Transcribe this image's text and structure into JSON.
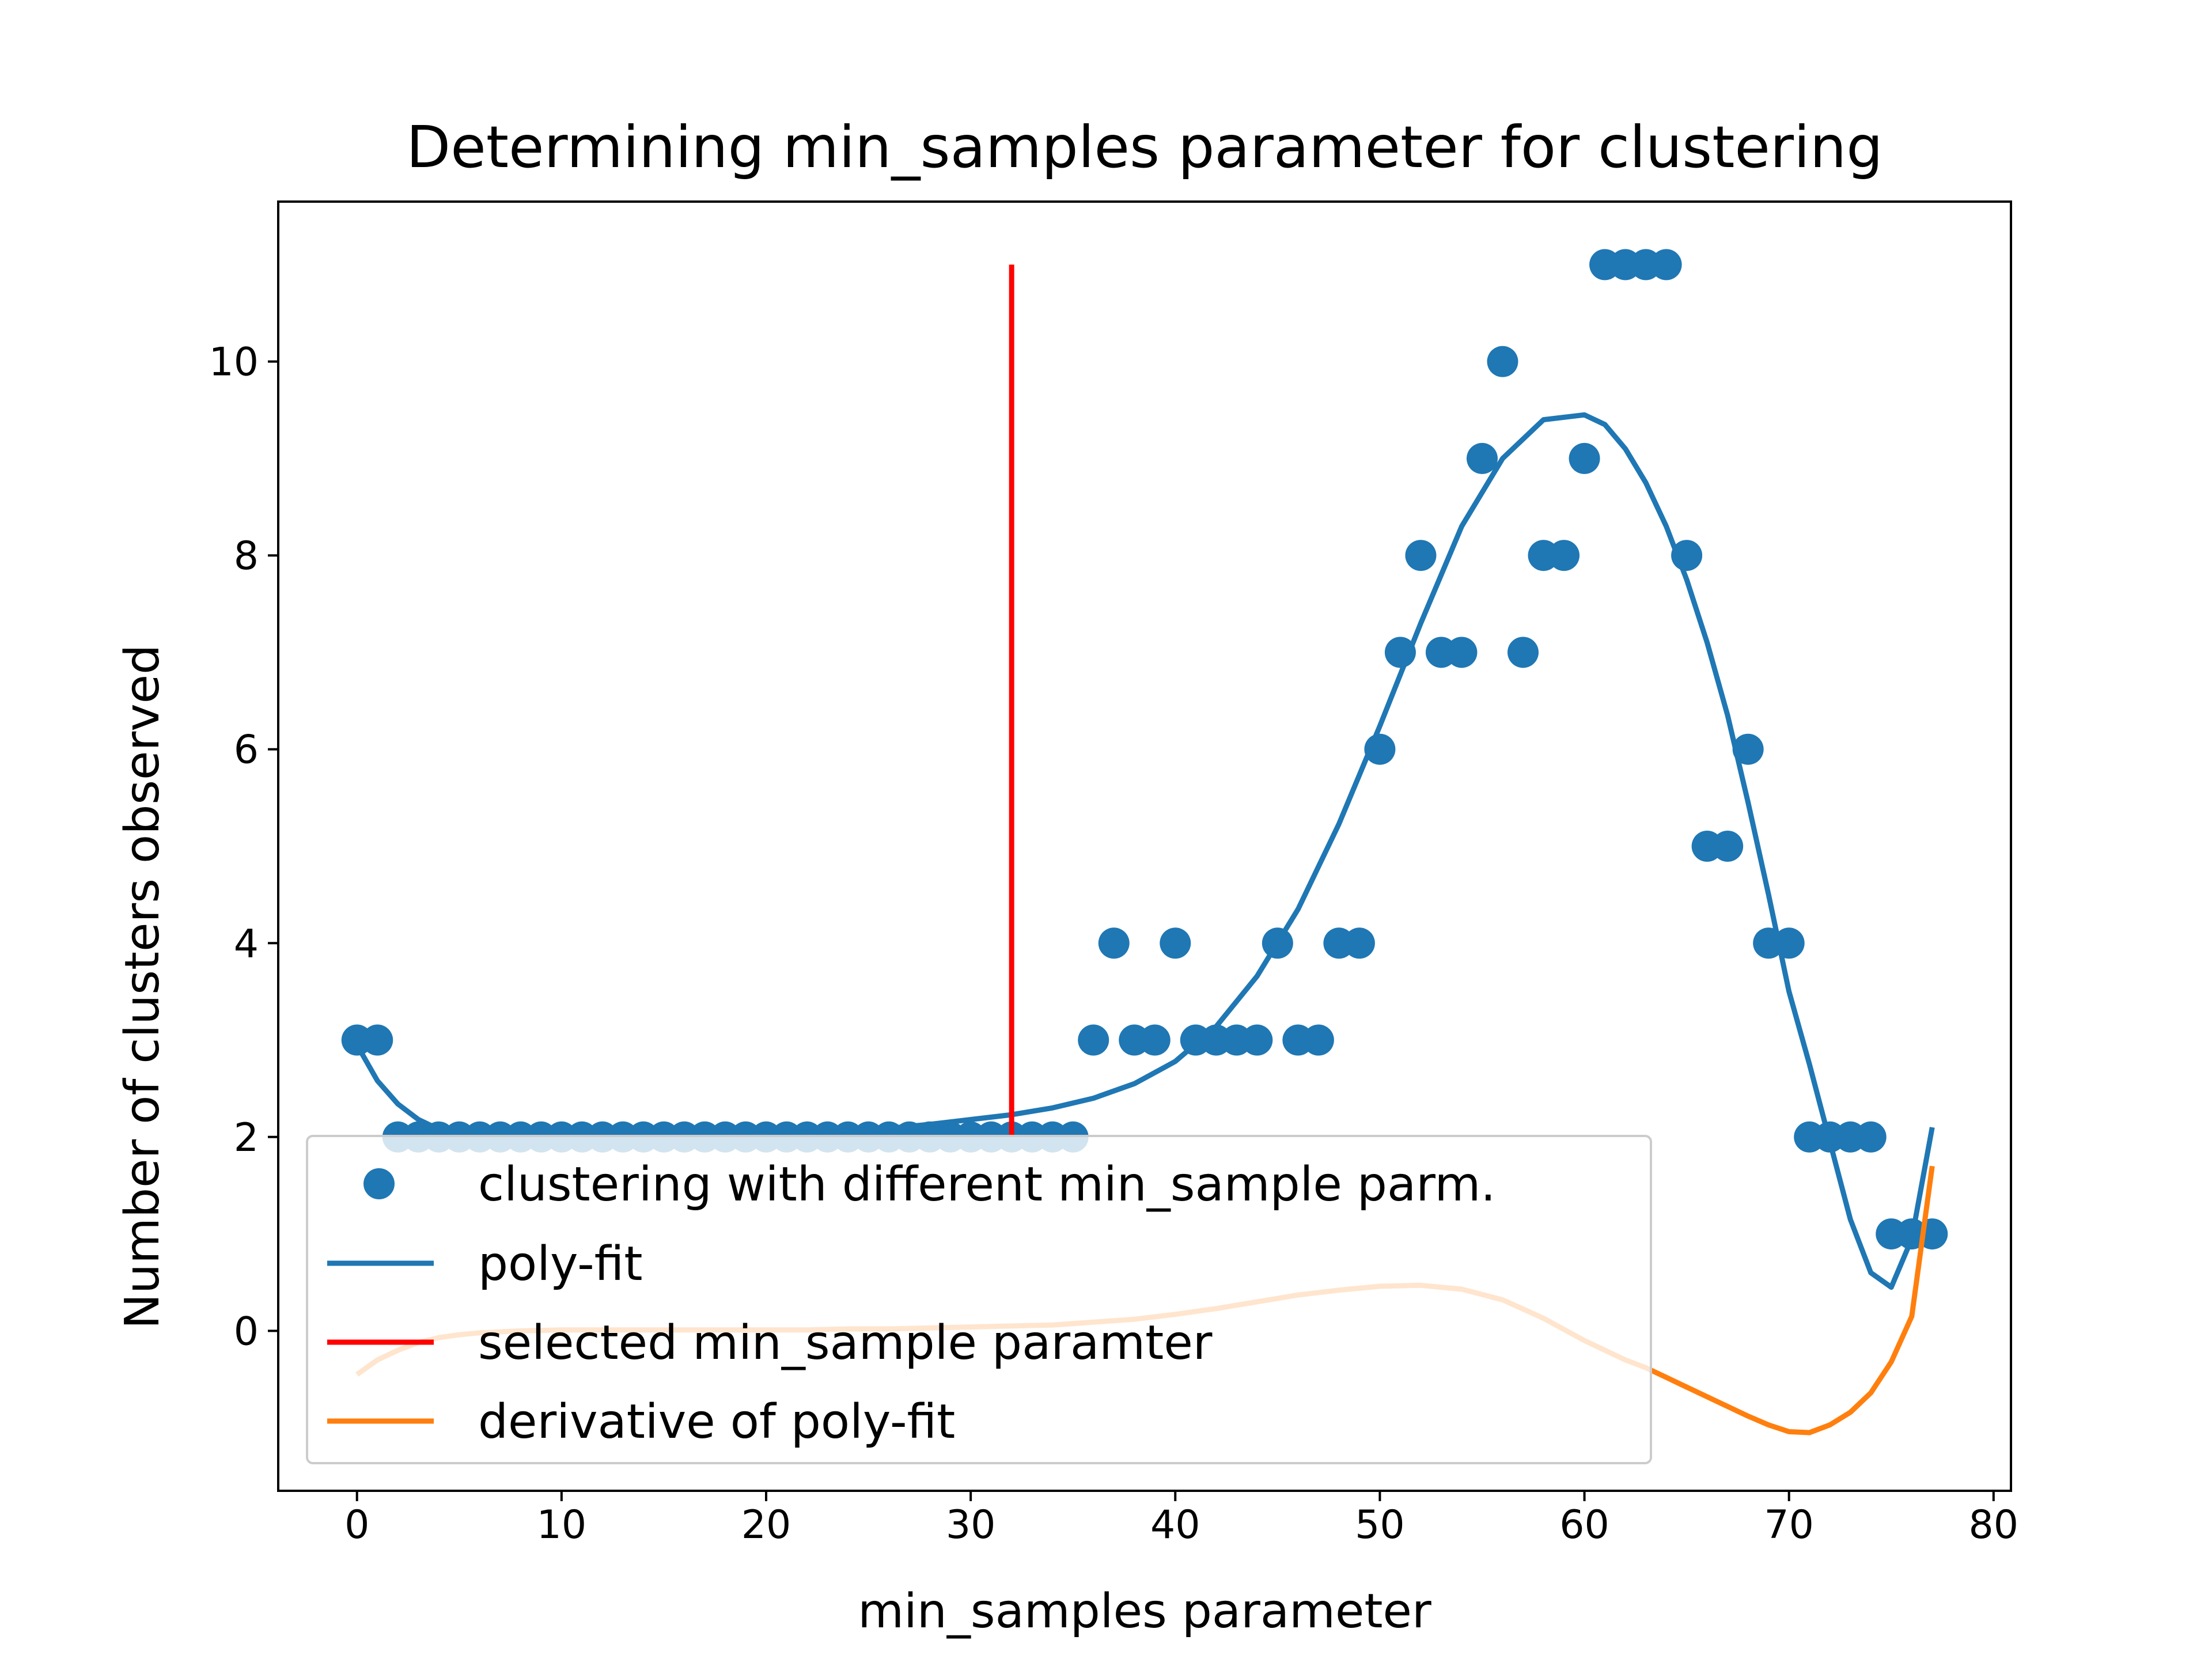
{
  "chart_data": {
    "type": "scatter",
    "title": "Determining min_samples parameter for clustering",
    "xlabel": "min_samples parameter",
    "ylabel": "Number of clusters observed",
    "xlim": [
      -3.85,
      80.85
    ],
    "ylim": [
      -1.65,
      11.65
    ],
    "xticks": [
      0,
      10,
      20,
      30,
      40,
      50,
      60,
      70,
      80
    ],
    "yticks": [
      0,
      2,
      4,
      6,
      8,
      10
    ],
    "grid": false,
    "legend_position": "lower-left",
    "series": [
      {
        "name": "clustering with different min_sample parm.",
        "kind": "scatter",
        "color": "#1f77b4",
        "x": [
          0,
          1,
          2,
          3,
          4,
          5,
          6,
          7,
          8,
          9,
          10,
          11,
          12,
          13,
          14,
          15,
          16,
          17,
          18,
          19,
          20,
          21,
          22,
          23,
          24,
          25,
          26,
          27,
          28,
          29,
          30,
          31,
          32,
          33,
          34,
          35,
          36,
          37,
          38,
          39,
          40,
          41,
          42,
          43,
          44,
          45,
          46,
          47,
          48,
          49,
          50,
          51,
          52,
          53,
          54,
          55,
          56,
          57,
          58,
          59,
          60,
          61,
          62,
          63,
          64,
          65,
          66,
          67,
          68,
          69,
          70,
          71,
          72,
          73,
          74,
          75,
          76,
          77
        ],
        "y": [
          3,
          3,
          2,
          2,
          2,
          2,
          2,
          2,
          2,
          2,
          2,
          2,
          2,
          2,
          2,
          2,
          2,
          2,
          2,
          2,
          2,
          2,
          2,
          2,
          2,
          2,
          2,
          2,
          2,
          2,
          2,
          2,
          2,
          2,
          2,
          2,
          3,
          4,
          3,
          3,
          4,
          3,
          3,
          3,
          3,
          4,
          3,
          3,
          4,
          4,
          6,
          7,
          8,
          7,
          7,
          9,
          10,
          7,
          8,
          8,
          9,
          11,
          11,
          11,
          11,
          8,
          5,
          5,
          6,
          4,
          4,
          2,
          2,
          2,
          2,
          1,
          1,
          1
        ]
      },
      {
        "name": "poly-fit",
        "kind": "line",
        "color": "#1f77b4",
        "x": [
          0,
          1,
          2,
          3,
          4,
          5,
          6,
          8,
          10,
          12,
          14,
          16,
          18,
          20,
          22,
          24,
          26,
          28,
          30,
          32,
          34,
          36,
          38,
          40,
          42,
          44,
          46,
          48,
          50,
          52,
          54,
          56,
          58,
          60,
          61,
          62,
          63,
          64,
          65,
          66,
          67,
          68,
          69,
          70,
          71,
          72,
          73,
          74,
          75,
          76,
          77
        ],
        "y": [
          2.95,
          2.58,
          2.34,
          2.18,
          2.08,
          2.03,
          2.0,
          1.98,
          1.98,
          1.99,
          2.0,
          2.01,
          2.02,
          2.03,
          2.04,
          2.06,
          2.09,
          2.13,
          2.18,
          2.23,
          2.3,
          2.4,
          2.55,
          2.78,
          3.14,
          3.66,
          4.35,
          5.23,
          6.24,
          7.3,
          8.3,
          9.0,
          9.4,
          9.45,
          9.35,
          9.1,
          8.75,
          8.3,
          7.75,
          7.1,
          6.35,
          5.45,
          4.5,
          3.5,
          2.75,
          1.95,
          1.15,
          0.6,
          0.45,
          0.95,
          2.1
        ]
      },
      {
        "name": "selected min_sample paramter",
        "kind": "vline",
        "color": "#ff0000",
        "x": 32,
        "ymin": 2,
        "ymax": 11
      },
      {
        "name": "derivative of poly-fit",
        "kind": "line",
        "color": "#ff7f0e",
        "x": [
          0,
          1,
          2,
          3,
          4,
          5,
          6,
          8,
          10,
          12,
          14,
          16,
          18,
          20,
          22,
          24,
          26,
          28,
          30,
          32,
          34,
          36,
          38,
          40,
          42,
          44,
          46,
          48,
          50,
          52,
          54,
          56,
          58,
          60,
          61,
          62,
          63,
          64,
          65,
          66,
          67,
          68,
          69,
          70,
          71,
          72,
          73,
          74,
          75,
          76,
          77
        ],
        "y": [
          -0.45,
          -0.3,
          -0.2,
          -0.12,
          -0.07,
          -0.04,
          -0.02,
          0.0,
          0.01,
          0.01,
          0.01,
          0.01,
          0.01,
          0.01,
          0.01,
          0.02,
          0.02,
          0.03,
          0.04,
          0.05,
          0.06,
          0.09,
          0.12,
          0.17,
          0.23,
          0.3,
          0.37,
          0.42,
          0.46,
          0.47,
          0.43,
          0.32,
          0.13,
          -0.1,
          -0.2,
          -0.3,
          -0.38,
          -0.48,
          -0.58,
          -0.68,
          -0.78,
          -0.88,
          -0.97,
          -1.04,
          -1.05,
          -0.97,
          -0.84,
          -0.64,
          -0.32,
          0.15,
          1.7
        ]
      }
    ]
  }
}
